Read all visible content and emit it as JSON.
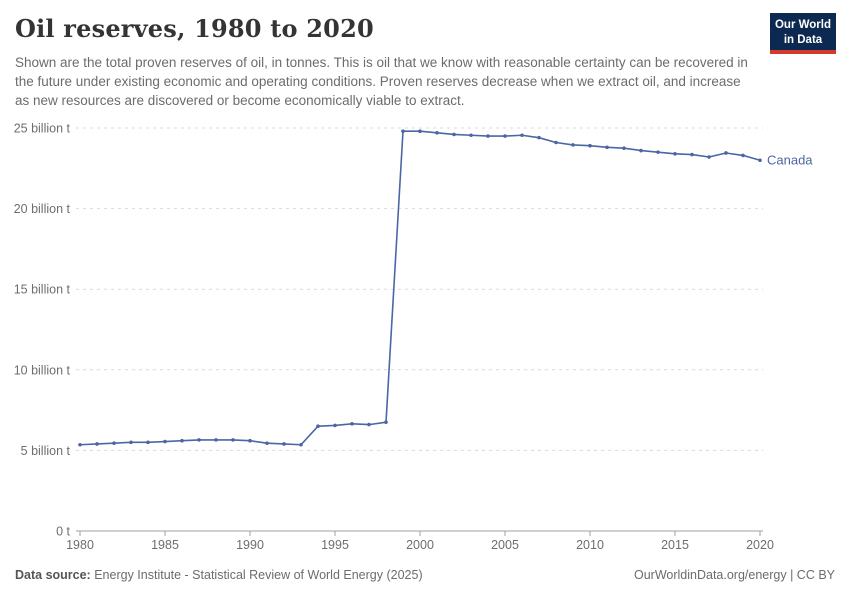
{
  "header": {
    "title": "Oil reserves, 1980 to 2020",
    "subtitle": "Shown are the total proven reserves of oil, in tonnes. This is oil that we know with reasonable certainty can be recovered in the future under existing economic and operating conditions. Proven reserves decrease when we extract oil, and increase as new resources are discovered or become economically viable to extract.",
    "logo": {
      "line1": "Our World",
      "line2": "in Data"
    }
  },
  "chart_data": {
    "type": "line",
    "title": "Oil reserves, 1980 to 2020",
    "xlabel": "",
    "ylabel": "",
    "y_unit": "billion tonnes",
    "xlim": [
      1980,
      2020
    ],
    "ylim": [
      0,
      25
    ],
    "grid": "dashed horizontal gridlines",
    "legend_position": "end-of-line label",
    "x": [
      1980,
      1981,
      1982,
      1983,
      1984,
      1985,
      1986,
      1987,
      1988,
      1989,
      1990,
      1991,
      1992,
      1993,
      1994,
      1995,
      1996,
      1997,
      1998,
      1999,
      2000,
      2001,
      2002,
      2003,
      2004,
      2005,
      2006,
      2007,
      2008,
      2009,
      2010,
      2011,
      2012,
      2013,
      2014,
      2015,
      2016,
      2017,
      2018,
      2019,
      2020
    ],
    "series": [
      {
        "name": "Canada",
        "color": "#4a67a3",
        "values": [
          5.35,
          5.4,
          5.45,
          5.5,
          5.5,
          5.55,
          5.6,
          5.65,
          5.65,
          5.65,
          5.6,
          5.45,
          5.4,
          5.35,
          6.5,
          6.55,
          6.65,
          6.6,
          6.75,
          24.8,
          24.8,
          24.7,
          24.6,
          24.55,
          24.5,
          24.5,
          24.55,
          24.4,
          24.1,
          23.95,
          23.9,
          23.8,
          23.75,
          23.6,
          23.5,
          23.4,
          23.35,
          23.2,
          23.45,
          23.3,
          23.0
        ]
      }
    ],
    "x_ticks": [
      1980,
      1985,
      1990,
      1995,
      2000,
      2005,
      2010,
      2015,
      2020
    ],
    "y_ticks": [
      {
        "value": 0,
        "label": "0 t"
      },
      {
        "value": 5,
        "label": "5 billion t"
      },
      {
        "value": 10,
        "label": "10 billion t"
      },
      {
        "value": 15,
        "label": "15 billion t"
      },
      {
        "value": 20,
        "label": "20 billion t"
      },
      {
        "value": 25,
        "label": "25 billion t"
      }
    ]
  },
  "footer": {
    "source_label": "Data source:",
    "source_text": "Energy Institute - Statistical Review of World Energy (2025)",
    "attribution": "OurWorldinData.org/energy | CC BY"
  },
  "colors": {
    "series_blue": "#4a67a3",
    "logo_background": "#0c2a51",
    "logo_accent_red": "#d23a2e",
    "gridline": "#d9d9d9",
    "axis_line": "#a0a0a0",
    "tick_text": "#6e6e6e",
    "title_text": "#343434",
    "subtitle_text": "#6c6c6c"
  }
}
